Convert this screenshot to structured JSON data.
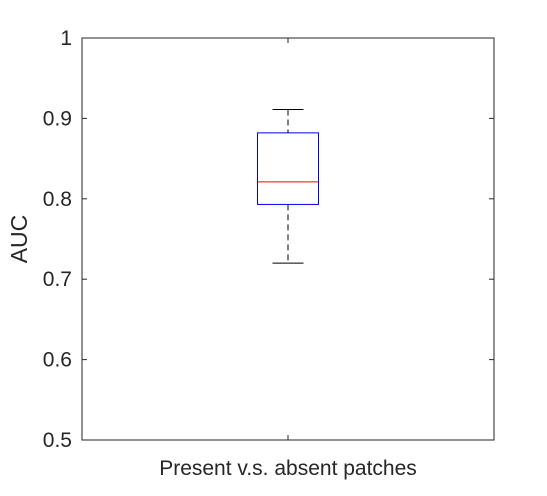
{
  "chart_data": {
    "type": "boxplot",
    "title": "",
    "xlabel": "",
    "ylabel": "AUC",
    "ylim": [
      0.5,
      1.0
    ],
    "yticks": [
      0.5,
      0.6,
      0.7,
      0.8,
      0.9,
      1.0
    ],
    "ytick_labels": [
      "0.5",
      "0.6",
      "0.7",
      "0.8",
      "0.9",
      "1"
    ],
    "categories": [
      "Present v.s. absent patches"
    ],
    "boxes": [
      {
        "category": "Present v.s. absent patches",
        "whisker_low": 0.72,
        "q1": 0.793,
        "median": 0.821,
        "q3": 0.882,
        "whisker_high": 0.911
      }
    ],
    "grid": false,
    "colors": {
      "box": "#0000ff",
      "median": "#ff0000",
      "whisker": "#000000",
      "axes": "#262626"
    }
  }
}
